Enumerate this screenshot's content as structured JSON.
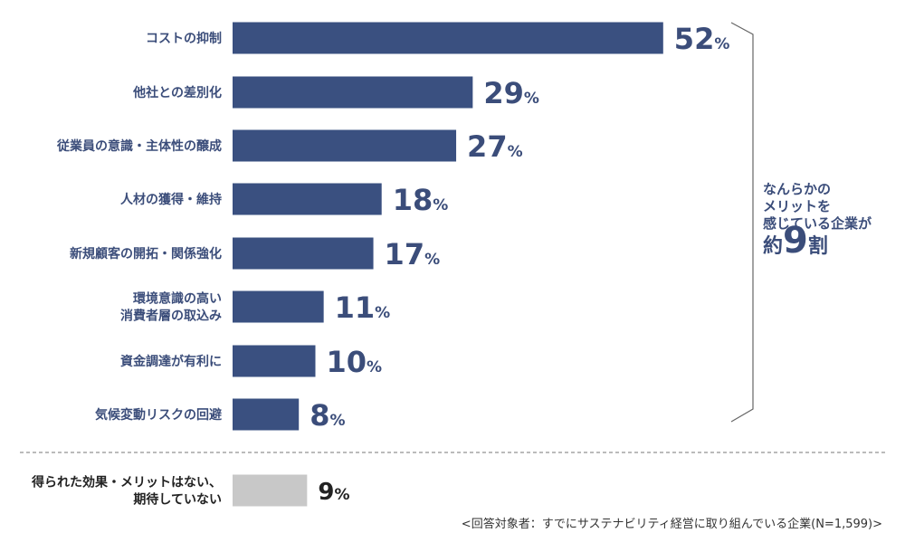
{
  "chart_data": {
    "type": "bar",
    "orientation": "horizontal",
    "categories": [
      [
        "コストの抑制"
      ],
      [
        "他社との差別化"
      ],
      [
        "従業員の意識・主体性の醸成"
      ],
      [
        "人材の獲得・維持"
      ],
      [
        "新規顧客の開拓・関係強化"
      ],
      [
        "環境意識の高い",
        "消費者層の取込み"
      ],
      [
        "資金調達が有利に"
      ],
      [
        "気候変動リスクの回避"
      ]
    ],
    "values": [
      52,
      29,
      27,
      18,
      17,
      11,
      10,
      8
    ],
    "unit": "%",
    "color": "#3a5080",
    "separate": {
      "category": [
        "得られた効果・メリットはない、",
        "期待していない"
      ],
      "value": 9,
      "color": "#c8c8c8"
    },
    "grid": false
  },
  "annotation": {
    "line1": "なんらかの",
    "line2": "メリットを",
    "line3": "感じている企業が",
    "prefix": "約",
    "number": "9",
    "suffix": "割"
  },
  "footnote": "<回答対象者：すでにサステナビリティ経営に取り組んでいる企業(N=1,599)>"
}
